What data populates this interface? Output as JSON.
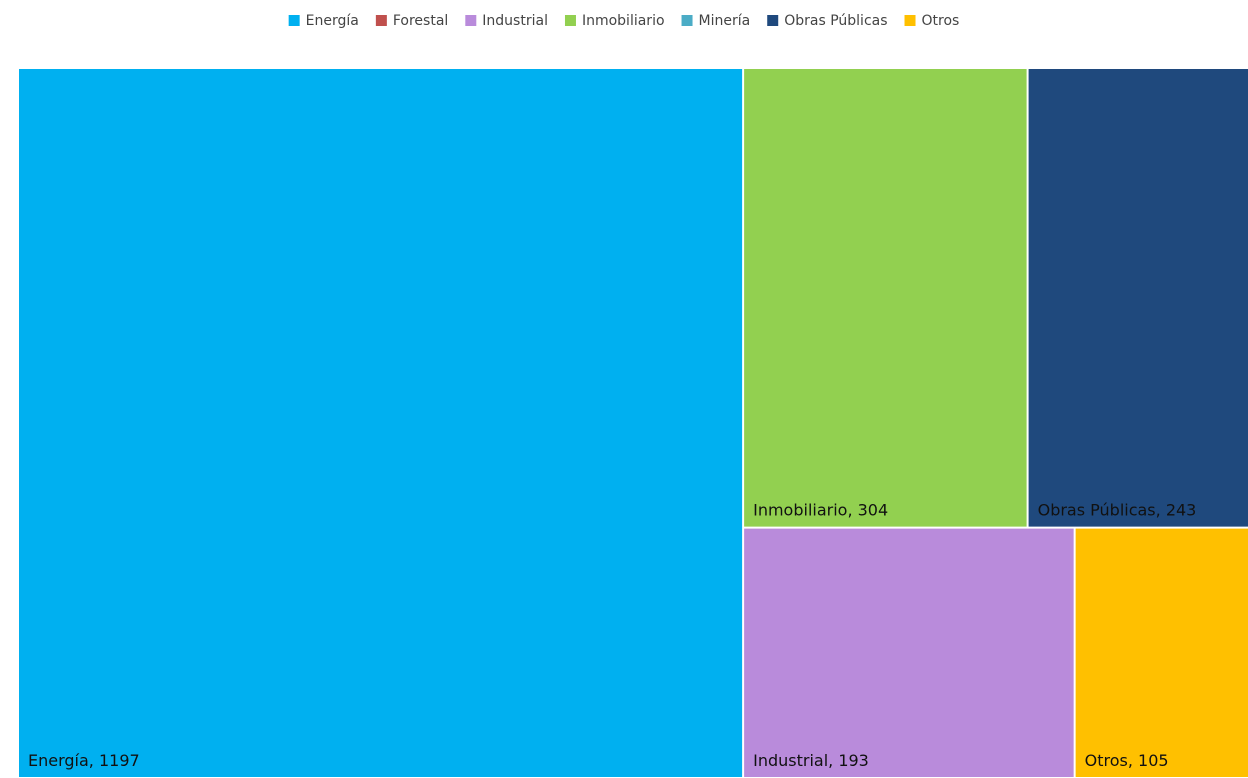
{
  "chart_data": {
    "type": "treemap",
    "categories": [
      "Energía",
      "Forestal",
      "Industrial",
      "Inmobiliario",
      "Minería",
      "Obras Públicas",
      "Otros"
    ],
    "values": [
      1197,
      null,
      193,
      304,
      null,
      243,
      105
    ],
    "value_labels": [
      "Energía, 1197",
      null,
      "Industrial, 193",
      "Inmobiliario, 304",
      null,
      "Obras Públicas, 243",
      "Otros, 105"
    ],
    "colors": [
      "#00b0f0",
      "#c0504d",
      "#b98bdb",
      "#92d050",
      "#4bacc6",
      "#1f497d",
      "#ffc000"
    ],
    "legend": "top"
  }
}
